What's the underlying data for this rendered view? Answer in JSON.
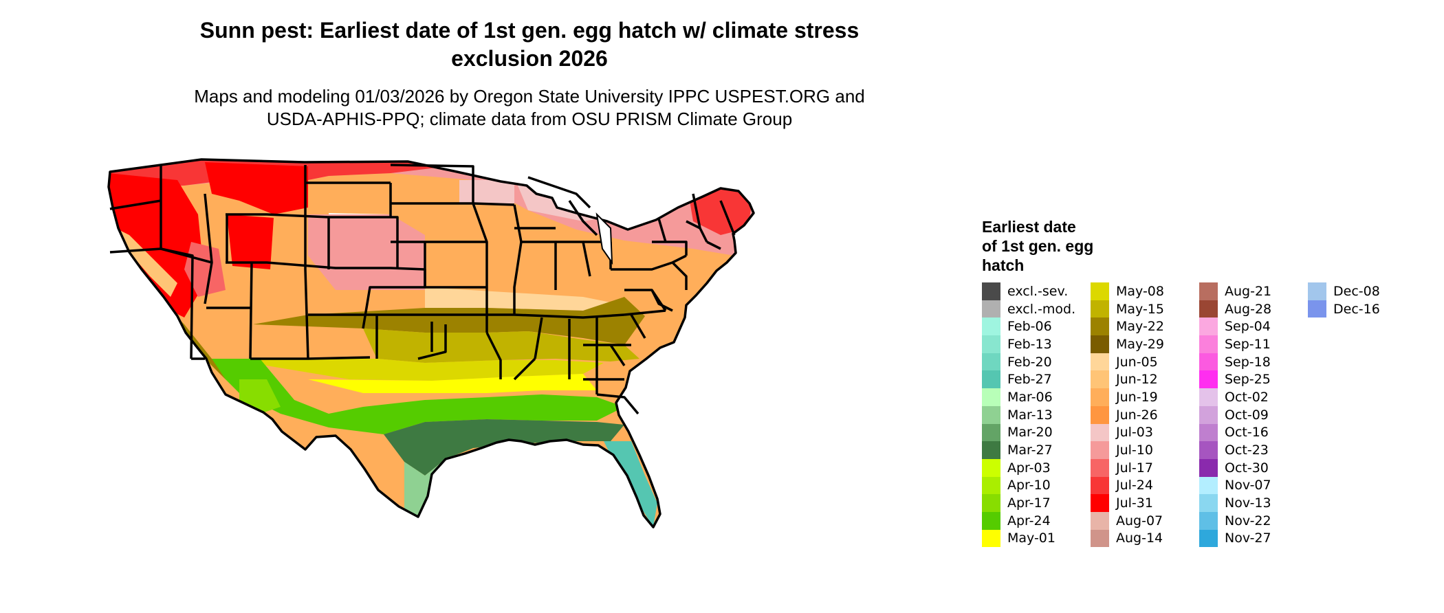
{
  "title_line1": "Sunn pest: Earliest date of 1st gen. egg hatch w/ climate stress",
  "title_line2": "exclusion 2026",
  "subtitle_line1": "Maps and modeling 01/03/2026 by Oregon State University IPPC USPEST.ORG and",
  "subtitle_line2": "USDA-APHIS-PPQ; climate data from OSU PRISM Climate Group",
  "legend": {
    "title_lines": [
      "Earliest date",
      "of 1st gen. egg",
      "hatch"
    ],
    "items": [
      {
        "label": "excl.-sev.",
        "color": "#4a4a4a"
      },
      {
        "label": "excl.-mod.",
        "color": "#b0b0b0"
      },
      {
        "label": "Feb-06",
        "color": "#9ff5e0"
      },
      {
        "label": "Feb-13",
        "color": "#88e6cf"
      },
      {
        "label": "Feb-20",
        "color": "#6fd7c0"
      },
      {
        "label": "Feb-27",
        "color": "#55c6b1"
      },
      {
        "label": "Mar-06",
        "color": "#b8ffb8"
      },
      {
        "label": "Mar-13",
        "color": "#8fd192"
      },
      {
        "label": "Mar-20",
        "color": "#63a466"
      },
      {
        "label": "Mar-27",
        "color": "#3e7a42"
      },
      {
        "label": "Apr-03",
        "color": "#ccff00"
      },
      {
        "label": "Apr-10",
        "color": "#aaee00"
      },
      {
        "label": "Apr-17",
        "color": "#88dd00"
      },
      {
        "label": "Apr-24",
        "color": "#55cc00"
      },
      {
        "label": "May-01",
        "color": "#ffff00"
      },
      {
        "label": "May-08",
        "color": "#dcd800"
      },
      {
        "label": "May-15",
        "color": "#c1b300"
      },
      {
        "label": "May-22",
        "color": "#9c8200"
      },
      {
        "label": "May-29",
        "color": "#7a5c00"
      },
      {
        "label": "Jun-05",
        "color": "#ffd699"
      },
      {
        "label": "Jun-12",
        "color": "#ffc476"
      },
      {
        "label": "Jun-19",
        "color": "#ffae5a"
      },
      {
        "label": "Jun-26",
        "color": "#ff9640"
      },
      {
        "label": "Jul-03",
        "color": "#f4c6c6"
      },
      {
        "label": "Jul-10",
        "color": "#f59a9a"
      },
      {
        "label": "Jul-17",
        "color": "#f76565"
      },
      {
        "label": "Jul-24",
        "color": "#f83636"
      },
      {
        "label": "Jul-31",
        "color": "#ff0000"
      },
      {
        "label": "Aug-07",
        "color": "#e8b4a8"
      },
      {
        "label": "Aug-14",
        "color": "#d0948a"
      },
      {
        "label": "Aug-21",
        "color": "#b86e60"
      },
      {
        "label": "Aug-28",
        "color": "#9a4633"
      },
      {
        "label": "Sep-04",
        "color": "#fba8e0"
      },
      {
        "label": "Sep-11",
        "color": "#fb80dc"
      },
      {
        "label": "Sep-18",
        "color": "#fb5ae0"
      },
      {
        "label": "Sep-25",
        "color": "#ff2ef0"
      },
      {
        "label": "Oct-02",
        "color": "#e4c2ea"
      },
      {
        "label": "Oct-09",
        "color": "#d2a2dc"
      },
      {
        "label": "Oct-16",
        "color": "#bf7fcf"
      },
      {
        "label": "Oct-23",
        "color": "#a655c0"
      },
      {
        "label": "Oct-30",
        "color": "#8a2aad"
      },
      {
        "label": "Nov-07",
        "color": "#b3eeff"
      },
      {
        "label": "Nov-13",
        "color": "#8ad7f0"
      },
      {
        "label": "Nov-22",
        "color": "#5fbfe6"
      },
      {
        "label": "Nov-27",
        "color": "#2ea8dc"
      },
      {
        "label": "Dec-08",
        "color": "#a2c6ec"
      },
      {
        "label": "Dec-16",
        "color": "#7a94ec"
      }
    ]
  }
}
